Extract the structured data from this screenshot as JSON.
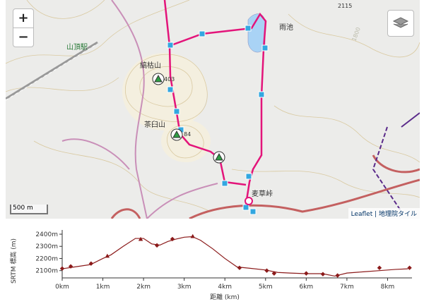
{
  "map": {
    "zoom_in": "+",
    "zoom_out": "−",
    "labels": [
      "山頂駅",
      "縞枯山",
      "403",
      "茶臼山",
      "84",
      "雨池",
      "2115",
      "1800",
      "麦草峠"
    ],
    "scale": "500 m",
    "attribution": "Leaflet | 地理院タイル"
  },
  "chart_data": {
    "type": "line",
    "ylabel": "SRTM 標高 (m)",
    "xlabel": "距離 (km)",
    "color": "#8b1a1a",
    "x": [
      0,
      0.3,
      0.7,
      1.0,
      1.2,
      1.5,
      1.8,
      2.0,
      2.2,
      2.4,
      2.6,
      2.8,
      3.0,
      3.2,
      3.4,
      3.7,
      4.0,
      4.3,
      4.6,
      5.0,
      5.3,
      5.6,
      6.0,
      6.4,
      6.7,
      7.0,
      7.4,
      7.8,
      8.2,
      8.5
    ],
    "values": [
      2115,
      2130,
      2150,
      2200,
      2230,
      2300,
      2365,
      2365,
      2320,
      2310,
      2340,
      2360,
      2375,
      2380,
      2350,
      2280,
      2200,
      2130,
      2120,
      2105,
      2085,
      2080,
      2075,
      2075,
      2055,
      2080,
      2090,
      2100,
      2110,
      2115
    ],
    "waypoints": {
      "x": [
        0,
        0.21,
        0.71,
        1.11,
        1.93,
        2.33,
        2.71,
        3.21,
        4.36,
        5.03,
        5.21,
        6.0,
        6.41,
        6.77,
        7.8,
        8.54
      ],
      "values": [
        2117,
        2135,
        2158,
        2221,
        2360,
        2308,
        2360,
        2383,
        2123,
        2100,
        2077,
        2077,
        2071,
        2060,
        2123,
        2123
      ],
      "shapes": [
        "diamond",
        "diamond",
        "diamond",
        "triangle",
        "triangle",
        "diamond",
        "diamond",
        "triangle",
        "diamond",
        "diamond",
        "diamond",
        "diamond",
        "diamond",
        "diamond",
        "diamond",
        "diamond"
      ]
    },
    "xlim": [
      0,
      8.6
    ],
    "ylim": [
      2040,
      2435
    ],
    "xticks": [
      {
        "value": 0,
        "label": "0km"
      },
      {
        "value": 1,
        "label": "1km"
      },
      {
        "value": 2,
        "label": "2km"
      },
      {
        "value": 3,
        "label": "3km"
      },
      {
        "value": 4,
        "label": "4km"
      },
      {
        "value": 5,
        "label": "5km"
      },
      {
        "value": 6,
        "label": "6km"
      },
      {
        "value": 7,
        "label": "7km"
      },
      {
        "value": 8,
        "label": "8km"
      }
    ],
    "yticks": [
      {
        "value": 2100,
        "label": "2100m"
      },
      {
        "value": 2200,
        "label": "2200m"
      },
      {
        "value": 2300,
        "label": "2300m"
      },
      {
        "value": 2400,
        "label": "2400m"
      }
    ],
    "grid": false
  }
}
